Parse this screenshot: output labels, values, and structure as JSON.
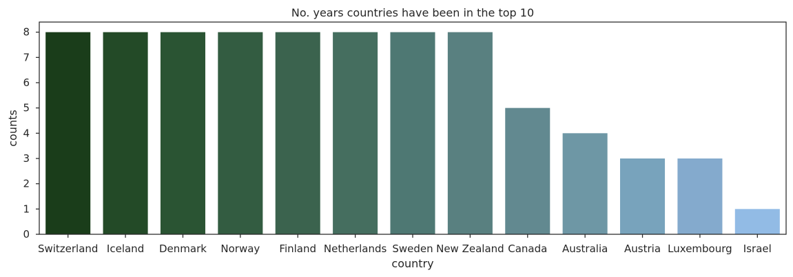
{
  "chart_data": {
    "type": "bar",
    "title": "No. years countries have been in the top 10",
    "xlabel": "country",
    "ylabel": "counts",
    "ylim": [
      0,
      8.4
    ],
    "yticks": [
      "0",
      "1",
      "2",
      "3",
      "4",
      "5",
      "6",
      "7",
      "8"
    ],
    "categories": [
      "Switzerland",
      "Iceland",
      "Denmark",
      "Norway",
      "Finland",
      "Netherlands",
      "Sweden",
      "New Zealand",
      "Canada",
      "Australia",
      "Austria",
      "Luxembourg",
      "Israel"
    ],
    "values": [
      8,
      8,
      8,
      8,
      8,
      8,
      8,
      8,
      5,
      4,
      3,
      3,
      1
    ],
    "colors": [
      "#1a3d1a",
      "#234a27",
      "#2a5433",
      "#335c41",
      "#3b634e",
      "#456e5f",
      "#4e7873",
      "#598080",
      "#628990",
      "#6e97a5",
      "#78a3bc",
      "#84aacd",
      "#92bbe5"
    ],
    "grid": false
  }
}
